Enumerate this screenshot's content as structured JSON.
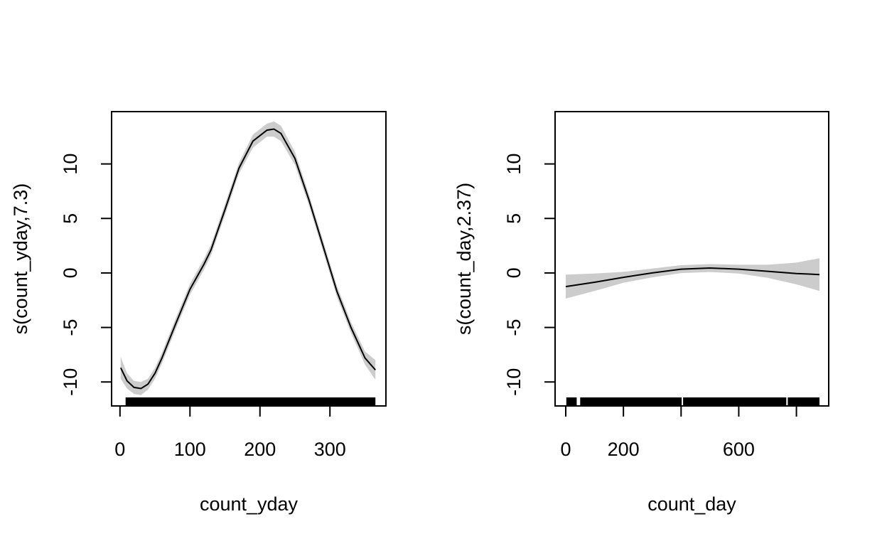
{
  "colors": {
    "line": "#000000",
    "band": "#cccccc",
    "background": "#ffffff"
  },
  "chart_data": [
    {
      "type": "line",
      "xlabel": "count_yday",
      "ylabel": "s(count_yday,7.3)",
      "xlim": [
        -12,
        380
      ],
      "ylim": [
        -12.2,
        14.8
      ],
      "xticks": [
        0,
        100,
        200,
        300
      ],
      "xtick_labels": [
        "0",
        "100",
        "200",
        "300"
      ],
      "yticks": [
        -10,
        -5,
        0,
        5,
        10
      ],
      "ytick_labels": [
        "-10",
        "-5",
        "0",
        "5",
        "10"
      ],
      "grid": false,
      "series": [
        {
          "x": [
            1,
            10,
            20,
            30,
            40,
            50,
            60,
            80,
            100,
            120,
            130,
            150,
            170,
            190,
            210,
            220,
            230,
            250,
            270,
            290,
            310,
            330,
            350,
            365
          ],
          "y": [
            -8.7,
            -9.9,
            -10.5,
            -10.6,
            -10.2,
            -9.2,
            -7.8,
            -4.6,
            -1.5,
            0.8,
            2.1,
            5.8,
            9.6,
            12.1,
            13.1,
            13.2,
            12.8,
            10.5,
            6.7,
            2.5,
            -1.7,
            -5.0,
            -7.8,
            -8.9
          ],
          "se": [
            0.5,
            0.35,
            0.3,
            0.3,
            0.25,
            0.25,
            0.25,
            0.25,
            0.25,
            0.25,
            0.25,
            0.25,
            0.25,
            0.3,
            0.3,
            0.35,
            0.35,
            0.3,
            0.25,
            0.25,
            0.25,
            0.25,
            0.3,
            0.45
          ]
        }
      ],
      "rug_segments": [
        [
          8,
          365
        ]
      ]
    },
    {
      "type": "line",
      "xlabel": "count_day",
      "ylabel": "s(count_day,2.37)",
      "xlim": [
        -37,
        912
      ],
      "ylim": [
        -12.2,
        14.8
      ],
      "xticks": [
        0,
        200,
        400,
        600,
        800
      ],
      "xtick_labels": [
        "0",
        "200",
        "",
        "600",
        ""
      ],
      "yticks": [
        -10,
        -5,
        0,
        5,
        10
      ],
      "ytick_labels": [
        "-10",
        "-5",
        "0",
        "5",
        "10"
      ],
      "grid": false,
      "series": [
        {
          "x": [
            0,
            100,
            200,
            300,
            400,
            500,
            600,
            700,
            800,
            880
          ],
          "y": [
            -1.25,
            -0.85,
            -0.4,
            0.0,
            0.35,
            0.45,
            0.35,
            0.15,
            -0.05,
            -0.15
          ],
          "se": [
            0.55,
            0.4,
            0.25,
            0.2,
            0.18,
            0.18,
            0.2,
            0.3,
            0.5,
            0.75
          ]
        }
      ],
      "rug_segments": [
        [
          2,
          38
        ],
        [
          50,
          402
        ],
        [
          407,
          765
        ],
        [
          770,
          880
        ]
      ]
    }
  ]
}
